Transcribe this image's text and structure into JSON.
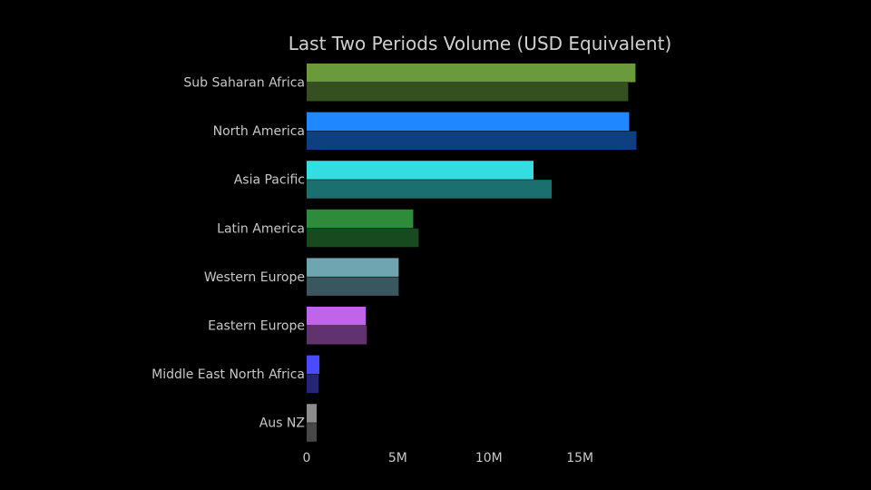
{
  "chart_data": {
    "type": "bar",
    "orientation": "horizontal",
    "title": "Last Two Periods Volume (USD Equivalent)",
    "xlabel": "",
    "ylabel": "",
    "xlim": [
      0,
      19000000
    ],
    "x_ticks": [
      {
        "value": 0,
        "label": "0"
      },
      {
        "value": 5000000,
        "label": "5M"
      },
      {
        "value": 10000000,
        "label": "10M"
      },
      {
        "value": 15000000,
        "label": "15M"
      }
    ],
    "grid": false,
    "legend": "none",
    "categories": [
      "Sub Saharan Africa",
      "North America",
      "Asia Pacific",
      "Latin America",
      "Western Europe",
      "Eastern Europe",
      "Middle East North Africa",
      "Aus NZ"
    ],
    "series": [
      {
        "period": "previous",
        "values": [
          18050000,
          17700000,
          12450000,
          5850000,
          5050000,
          3250000,
          700000,
          550000
        ],
        "colors": [
          "#6a9a3c",
          "#1f87ff",
          "#33dde0",
          "#2e8b3a",
          "#6fa5b0",
          "#c064e8",
          "#4a4aff",
          "#8c8c8c"
        ]
      },
      {
        "period": "latest",
        "values": [
          17650000,
          18100000,
          13450000,
          6150000,
          5050000,
          3300000,
          650000,
          550000
        ],
        "colors": [
          "#344f20",
          "#0e3f7e",
          "#1c6f6f",
          "#184a1f",
          "#3a5760",
          "#60336f",
          "#252575",
          "#484848"
        ]
      }
    ]
  }
}
